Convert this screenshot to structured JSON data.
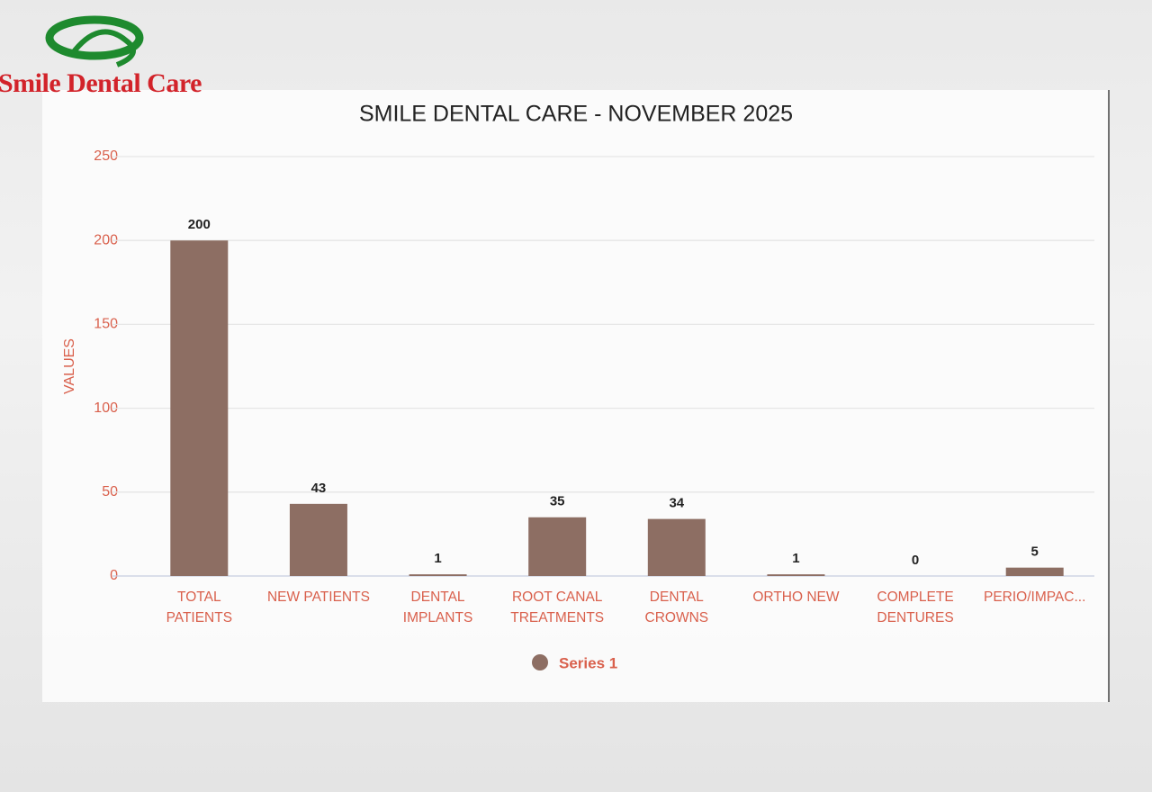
{
  "logo": {
    "text": "Smile Dental Care"
  },
  "chart_data": {
    "type": "bar",
    "title": "SMILE DENTAL CARE - NOVEMBER 2025",
    "y_label": "VALUES",
    "categories": [
      "TOTAL PATIENTS",
      "NEW PATIENTS",
      "DENTAL IMPLANTS",
      "ROOT CANAL TREATMENTS",
      "DENTAL CROWNS",
      "ORTHO NEW",
      "COMPLETE DENTURES",
      "PERIO/IMPAC..."
    ],
    "series": [
      {
        "name": "Series 1",
        "color": "#8d6e63",
        "values": [
          200,
          43,
          1,
          35,
          34,
          1,
          0,
          5
        ]
      }
    ],
    "ylim": [
      0,
      250
    ],
    "yticks": [
      0,
      50,
      100,
      150,
      200,
      250
    ],
    "grid": true,
    "legend": "bottom"
  }
}
